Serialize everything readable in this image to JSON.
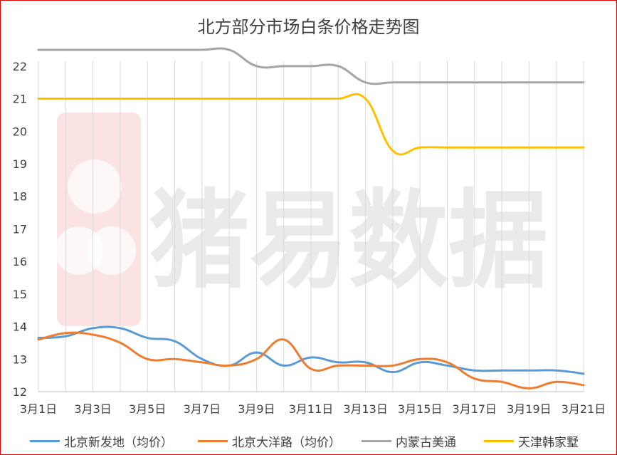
{
  "chart_data": {
    "type": "line",
    "title": "北方部分市场白条价格走势图",
    "xlabel": "",
    "ylabel": "",
    "ylim": [
      12,
      22.5
    ],
    "yticks": [
      12,
      13,
      14,
      15,
      16,
      17,
      18,
      19,
      20,
      21,
      22
    ],
    "x": [
      "3月1日",
      "3月2日",
      "3月3日",
      "3月4日",
      "3月5日",
      "3月6日",
      "3月7日",
      "3月8日",
      "3月9日",
      "3月10日",
      "3月11日",
      "3月12日",
      "3月13日",
      "3月14日",
      "3月15日",
      "3月16日",
      "3月17日",
      "3月18日",
      "3月19日",
      "3月20日",
      "3月21日"
    ],
    "xtick_labels": [
      "3月1日",
      "3月3日",
      "3月5日",
      "3月7日",
      "3月9日",
      "3月11日",
      "3月13日",
      "3月15日",
      "3月17日",
      "3月19日",
      "3月21日"
    ],
    "grid": "vertical",
    "legend_position": "bottom",
    "series": [
      {
        "name": "北京新发地（均价）",
        "color": "#5b9bd5",
        "values": [
          13.65,
          13.7,
          13.95,
          13.95,
          13.65,
          13.55,
          13.0,
          12.8,
          13.2,
          12.8,
          13.05,
          12.9,
          12.9,
          12.6,
          12.9,
          12.8,
          12.65,
          12.65,
          12.65,
          12.65,
          12.55
        ]
      },
      {
        "name": "北京大洋路（均价）",
        "color": "#ed7d31",
        "values": [
          13.6,
          13.8,
          13.75,
          13.5,
          13.0,
          13.0,
          12.9,
          12.8,
          13.0,
          13.6,
          12.7,
          12.8,
          12.8,
          12.8,
          13.0,
          12.9,
          12.4,
          12.3,
          12.1,
          12.3,
          12.2
        ]
      },
      {
        "name": "内蒙古美通",
        "color": "#a5a5a5",
        "values": [
          22.5,
          22.5,
          22.5,
          22.5,
          22.5,
          22.5,
          22.5,
          22.5,
          22.0,
          22.0,
          22.0,
          22.0,
          21.5,
          21.5,
          21.5,
          21.5,
          21.5,
          21.5,
          21.5,
          21.5,
          21.5
        ]
      },
      {
        "name": "天津韩家墅",
        "color": "#ffc000",
        "values": [
          21.0,
          21.0,
          21.0,
          21.0,
          21.0,
          21.0,
          21.0,
          21.0,
          21.0,
          21.0,
          21.0,
          21.0,
          21.0,
          19.4,
          19.5,
          19.5,
          19.5,
          19.5,
          19.5,
          19.5,
          19.5
        ]
      }
    ],
    "watermark": "猪易数据"
  }
}
